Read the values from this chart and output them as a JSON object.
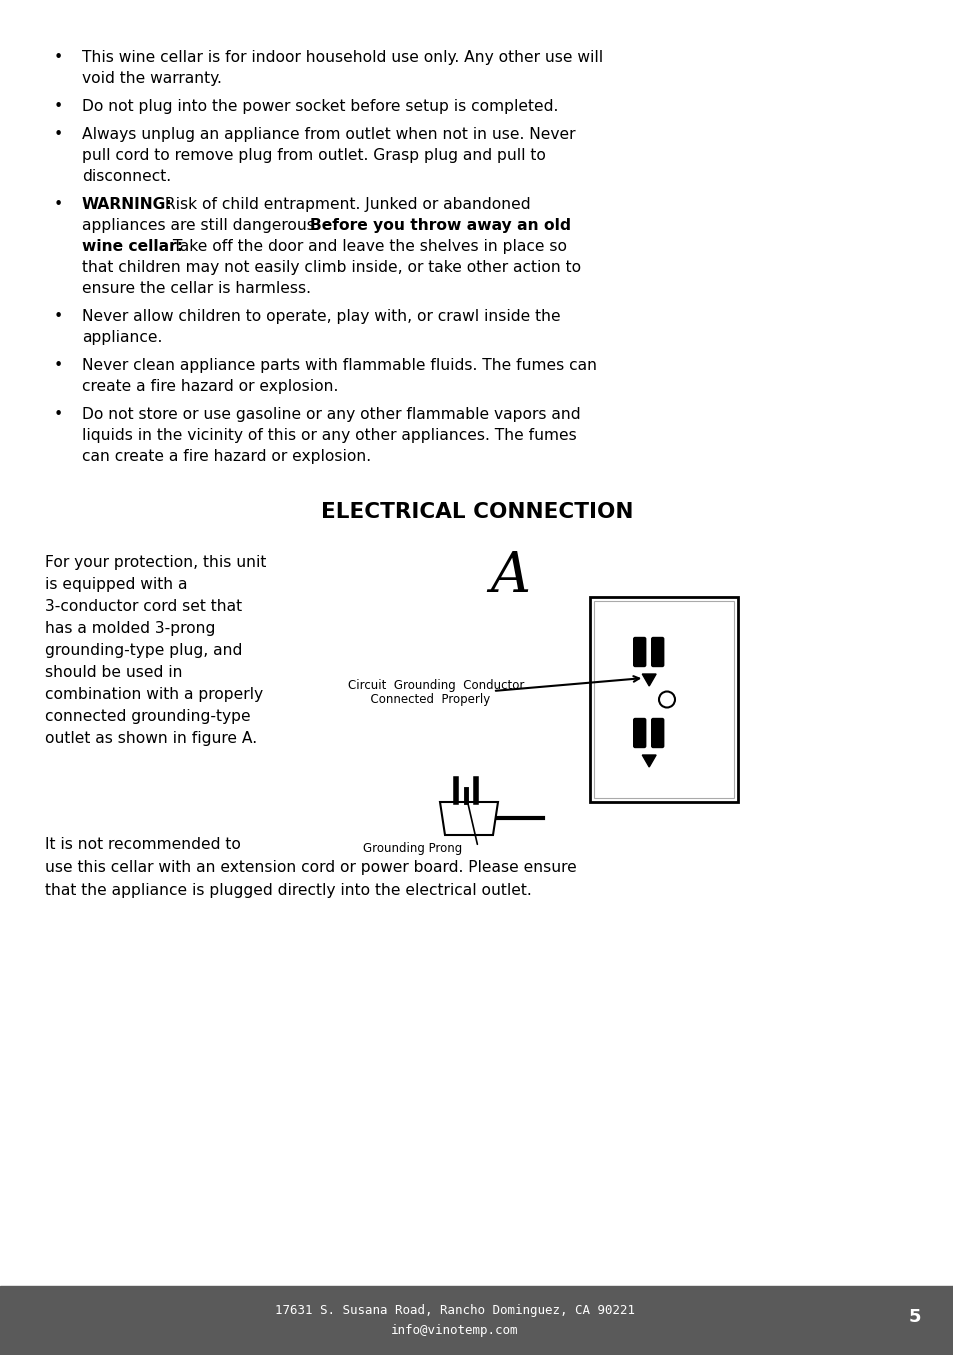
{
  "bg_color": "#ffffff",
  "footer_bg": "#5a5a5a",
  "footer_text1": "17631 S. Susana Road, Rancho Dominguez, CA 90221",
  "footer_text2": "info@vinotemp.com",
  "footer_page": "5",
  "section_title": "ELECTRICAL CONNECTION",
  "left_lines": [
    "For your protection, this unit",
    "is equipped with a",
    "3-conductor cord set that",
    "has a molded 3-prong",
    "grounding-type plug, and",
    "should be used in",
    "combination with a properly",
    "connected grounding-type",
    "outlet as shown in figure A."
  ],
  "bottom_lines": [
    "It is not recommended to",
    "use this cellar with an extension cord or power board. Please ensure",
    "that the appliance is plugged directly into the electrical outlet."
  ]
}
